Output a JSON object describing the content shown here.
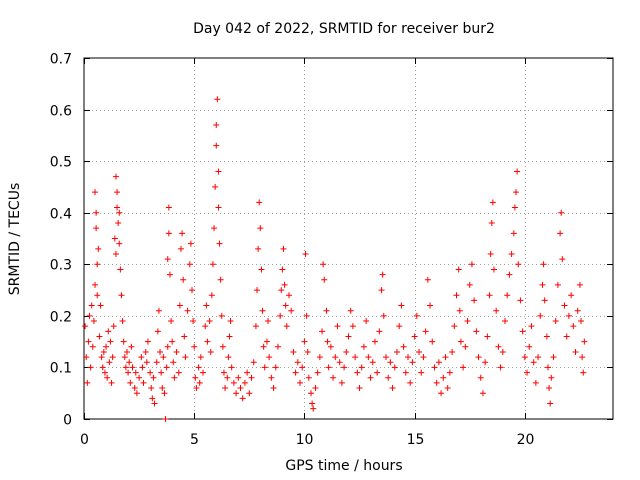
{
  "chart_data": {
    "type": "scatter",
    "title": "Day 042 of 2022, SRMTID for receiver bur2",
    "xlabel": "GPS time / hours",
    "ylabel": "SRMTID / TECUs",
    "xlim": [
      0,
      24
    ],
    "ylim": [
      0,
      0.7
    ],
    "x_ticks": [
      0,
      5,
      10,
      15,
      20
    ],
    "y_ticks": [
      0,
      0.1,
      0.2,
      0.3,
      0.4,
      0.5,
      0.6,
      0.7
    ],
    "x_tick_labels": [
      "0",
      "5",
      "10",
      "15",
      "20"
    ],
    "y_tick_labels": [
      "0",
      "0.1",
      "0.2",
      "0.3",
      "0.4",
      "0.5",
      "0.6",
      "0.7"
    ],
    "grid": true,
    "marker": "+",
    "series": [
      {
        "name": "bur2",
        "color": "#ff0000",
        "points": [
          [
            0.05,
            0.18
          ],
          [
            0.1,
            0.12
          ],
          [
            0.15,
            0.07
          ],
          [
            0.2,
            0.15
          ],
          [
            0.25,
            0.2
          ],
          [
            0.3,
            0.1
          ],
          [
            0.35,
            0.22
          ],
          [
            0.4,
            0.14
          ],
          [
            0.45,
            0.19
          ],
          [
            0.5,
            0.26
          ],
          [
            0.5,
            0.44
          ],
          [
            0.55,
            0.4
          ],
          [
            0.55,
            0.37
          ],
          [
            0.6,
            0.3
          ],
          [
            0.6,
            0.24
          ],
          [
            0.65,
            0.33
          ],
          [
            0.7,
            0.16
          ],
          [
            0.75,
            0.22
          ],
          [
            0.8,
            0.12
          ],
          [
            0.85,
            0.1
          ],
          [
            0.9,
            0.13
          ],
          [
            0.95,
            0.09
          ],
          [
            1.0,
            0.14
          ],
          [
            1.05,
            0.08
          ],
          [
            1.1,
            0.17
          ],
          [
            1.15,
            0.11
          ],
          [
            1.2,
            0.15
          ],
          [
            1.25,
            0.07
          ],
          [
            1.3,
            0.12
          ],
          [
            1.35,
            0.18
          ],
          [
            1.4,
            0.35
          ],
          [
            1.45,
            0.32
          ],
          [
            1.45,
            0.47
          ],
          [
            1.5,
            0.44
          ],
          [
            1.5,
            0.41
          ],
          [
            1.55,
            0.38
          ],
          [
            1.6,
            0.34
          ],
          [
            1.6,
            0.4
          ],
          [
            1.65,
            0.29
          ],
          [
            1.7,
            0.24
          ],
          [
            1.75,
            0.19
          ],
          [
            1.8,
            0.15
          ],
          [
            1.85,
            0.12
          ],
          [
            1.9,
            0.1
          ],
          [
            1.95,
            0.13
          ],
          [
            2.0,
            0.09
          ],
          [
            2.05,
            0.11
          ],
          [
            2.1,
            0.07
          ],
          [
            2.15,
            0.14
          ],
          [
            2.2,
            0.1
          ],
          [
            2.3,
            0.06
          ],
          [
            2.35,
            0.09
          ],
          [
            2.4,
            0.05
          ],
          [
            2.5,
            0.08
          ],
          [
            2.6,
            0.12
          ],
          [
            2.65,
            0.1
          ],
          [
            2.7,
            0.07
          ],
          [
            2.8,
            0.13
          ],
          [
            2.85,
            0.11
          ],
          [
            2.9,
            0.15
          ],
          [
            3.0,
            0.09
          ],
          [
            3.05,
            0.06
          ],
          [
            3.1,
            0.04
          ],
          [
            3.15,
            0.08
          ],
          [
            3.2,
            0.03
          ],
          [
            3.3,
            0.11
          ],
          [
            3.35,
            0.17
          ],
          [
            3.4,
            0.21
          ],
          [
            3.45,
            0.13
          ],
          [
            3.5,
            0.09
          ],
          [
            3.55,
            0.06
          ],
          [
            3.6,
            0.12
          ],
          [
            3.65,
            0.05
          ],
          [
            3.7,
            0.0
          ],
          [
            3.75,
            0.1
          ],
          [
            3.8,
            0.14
          ],
          [
            3.8,
            0.31
          ],
          [
            3.85,
            0.36
          ],
          [
            3.85,
            0.41
          ],
          [
            3.9,
            0.28
          ],
          [
            3.95,
            0.19
          ],
          [
            4.0,
            0.15
          ],
          [
            4.05,
            0.11
          ],
          [
            4.1,
            0.08
          ],
          [
            4.2,
            0.13
          ],
          [
            4.3,
            0.09
          ],
          [
            4.35,
            0.22
          ],
          [
            4.4,
            0.33
          ],
          [
            4.45,
            0.36
          ],
          [
            4.5,
            0.27
          ],
          [
            4.55,
            0.16
          ],
          [
            4.6,
            0.12
          ],
          [
            4.7,
            0.21
          ],
          [
            4.8,
            0.3
          ],
          [
            4.85,
            0.34
          ],
          [
            4.9,
            0.25
          ],
          [
            4.95,
            0.19
          ],
          [
            5.0,
            0.14
          ],
          [
            5.05,
            0.08
          ],
          [
            5.1,
            0.06
          ],
          [
            5.2,
            0.1
          ],
          [
            5.25,
            0.07
          ],
          [
            5.3,
            0.12
          ],
          [
            5.4,
            0.09
          ],
          [
            5.5,
            0.18
          ],
          [
            5.55,
            0.22
          ],
          [
            5.6,
            0.15
          ],
          [
            5.7,
            0.19
          ],
          [
            5.75,
            0.13
          ],
          [
            5.8,
            0.24
          ],
          [
            5.85,
            0.3
          ],
          [
            5.9,
            0.37
          ],
          [
            5.95,
            0.45
          ],
          [
            6.0,
            0.53
          ],
          [
            6.0,
            0.57
          ],
          [
            6.05,
            0.62
          ],
          [
            6.1,
            0.48
          ],
          [
            6.1,
            0.41
          ],
          [
            6.15,
            0.34
          ],
          [
            6.2,
            0.27
          ],
          [
            6.25,
            0.2
          ],
          [
            6.3,
            0.14
          ],
          [
            6.35,
            0.09
          ],
          [
            6.4,
            0.06
          ],
          [
            6.5,
            0.08
          ],
          [
            6.55,
            0.12
          ],
          [
            6.6,
            0.16
          ],
          [
            6.65,
            0.19
          ],
          [
            6.7,
            0.1
          ],
          [
            6.8,
            0.07
          ],
          [
            6.9,
            0.05
          ],
          [
            7.0,
            0.08
          ],
          [
            7.1,
            0.06
          ],
          [
            7.2,
            0.04
          ],
          [
            7.3,
            0.07
          ],
          [
            7.4,
            0.09
          ],
          [
            7.5,
            0.05
          ],
          [
            7.6,
            0.08
          ],
          [
            7.7,
            0.11
          ],
          [
            7.8,
            0.18
          ],
          [
            7.85,
            0.25
          ],
          [
            7.9,
            0.33
          ],
          [
            7.95,
            0.42
          ],
          [
            8.0,
            0.37
          ],
          [
            8.05,
            0.29
          ],
          [
            8.1,
            0.21
          ],
          [
            8.15,
            0.14
          ],
          [
            8.2,
            0.1
          ],
          [
            8.3,
            0.15
          ],
          [
            8.35,
            0.19
          ],
          [
            8.4,
            0.12
          ],
          [
            8.5,
            0.08
          ],
          [
            8.6,
            0.06
          ],
          [
            8.7,
            0.1
          ],
          [
            8.8,
            0.14
          ],
          [
            8.9,
            0.2
          ],
          [
            8.95,
            0.25
          ],
          [
            9.0,
            0.29
          ],
          [
            9.05,
            0.33
          ],
          [
            9.1,
            0.26
          ],
          [
            9.15,
            0.22
          ],
          [
            9.2,
            0.18
          ],
          [
            9.3,
            0.24
          ],
          [
            9.4,
            0.21
          ],
          [
            9.5,
            0.13
          ],
          [
            9.6,
            0.09
          ],
          [
            9.7,
            0.11
          ],
          [
            9.8,
            0.07
          ],
          [
            9.9,
            0.1
          ],
          [
            10.0,
            0.15
          ],
          [
            10.05,
            0.32
          ],
          [
            10.1,
            0.2
          ],
          [
            10.15,
            0.13
          ],
          [
            10.2,
            0.08
          ],
          [
            10.3,
            0.05
          ],
          [
            10.35,
            0.03
          ],
          [
            10.4,
            0.02
          ],
          [
            10.5,
            0.06
          ],
          [
            10.6,
            0.09
          ],
          [
            10.7,
            0.12
          ],
          [
            10.8,
            0.17
          ],
          [
            10.85,
            0.3
          ],
          [
            10.9,
            0.27
          ],
          [
            11.0,
            0.21
          ],
          [
            11.05,
            0.15
          ],
          [
            11.1,
            0.1
          ],
          [
            11.2,
            0.14
          ],
          [
            11.3,
            0.08
          ],
          [
            11.4,
            0.12
          ],
          [
            11.5,
            0.18
          ],
          [
            11.6,
            0.11
          ],
          [
            11.7,
            0.07
          ],
          [
            11.8,
            0.1
          ],
          [
            11.9,
            0.13
          ],
          [
            12.0,
            0.16
          ],
          [
            12.1,
            0.21
          ],
          [
            12.2,
            0.18
          ],
          [
            12.3,
            0.12
          ],
          [
            12.4,
            0.09
          ],
          [
            12.5,
            0.06
          ],
          [
            12.6,
            0.1
          ],
          [
            12.7,
            0.14
          ],
          [
            12.8,
            0.19
          ],
          [
            12.9,
            0.12
          ],
          [
            13.0,
            0.08
          ],
          [
            13.1,
            0.11
          ],
          [
            13.2,
            0.15
          ],
          [
            13.3,
            0.09
          ],
          [
            13.4,
            0.17
          ],
          [
            13.5,
            0.25
          ],
          [
            13.55,
            0.28
          ],
          [
            13.6,
            0.2
          ],
          [
            13.7,
            0.12
          ],
          [
            13.8,
            0.08
          ],
          [
            13.9,
            0.11
          ],
          [
            14.0,
            0.06
          ],
          [
            14.1,
            0.1
          ],
          [
            14.2,
            0.13
          ],
          [
            14.3,
            0.18
          ],
          [
            14.4,
            0.22
          ],
          [
            14.5,
            0.14
          ],
          [
            14.6,
            0.09
          ],
          [
            14.7,
            0.12
          ],
          [
            14.8,
            0.07
          ],
          [
            14.9,
            0.11
          ],
          [
            15.0,
            0.16
          ],
          [
            15.1,
            0.2
          ],
          [
            15.2,
            0.13
          ],
          [
            15.3,
            0.09
          ],
          [
            15.4,
            0.12
          ],
          [
            15.5,
            0.17
          ],
          [
            15.6,
            0.27
          ],
          [
            15.7,
            0.22
          ],
          [
            15.8,
            0.15
          ],
          [
            15.9,
            0.1
          ],
          [
            16.0,
            0.07
          ],
          [
            16.1,
            0.11
          ],
          [
            16.2,
            0.05
          ],
          [
            16.3,
            0.08
          ],
          [
            16.4,
            0.12
          ],
          [
            16.5,
            0.06
          ],
          [
            16.6,
            0.09
          ],
          [
            16.7,
            0.13
          ],
          [
            16.8,
            0.18
          ],
          [
            16.9,
            0.24
          ],
          [
            17.0,
            0.29
          ],
          [
            17.05,
            0.21
          ],
          [
            17.1,
            0.15
          ],
          [
            17.2,
            0.1
          ],
          [
            17.3,
            0.14
          ],
          [
            17.4,
            0.19
          ],
          [
            17.5,
            0.26
          ],
          [
            17.6,
            0.3
          ],
          [
            17.7,
            0.23
          ],
          [
            17.8,
            0.17
          ],
          [
            17.9,
            0.12
          ],
          [
            18.0,
            0.08
          ],
          [
            18.1,
            0.05
          ],
          [
            18.2,
            0.11
          ],
          [
            18.3,
            0.16
          ],
          [
            18.4,
            0.24
          ],
          [
            18.45,
            0.32
          ],
          [
            18.5,
            0.38
          ],
          [
            18.55,
            0.42
          ],
          [
            18.6,
            0.29
          ],
          [
            18.7,
            0.21
          ],
          [
            18.8,
            0.14
          ],
          [
            18.9,
            0.1
          ],
          [
            19.0,
            0.13
          ],
          [
            19.1,
            0.19
          ],
          [
            19.2,
            0.24
          ],
          [
            19.3,
            0.28
          ],
          [
            19.4,
            0.32
          ],
          [
            19.5,
            0.36
          ],
          [
            19.55,
            0.41
          ],
          [
            19.6,
            0.44
          ],
          [
            19.65,
            0.48
          ],
          [
            19.7,
            0.3
          ],
          [
            19.8,
            0.23
          ],
          [
            19.9,
            0.17
          ],
          [
            20.0,
            0.12
          ],
          [
            20.1,
            0.09
          ],
          [
            20.2,
            0.14
          ],
          [
            20.3,
            0.18
          ],
          [
            20.4,
            0.11
          ],
          [
            20.5,
            0.07
          ],
          [
            20.6,
            0.12
          ],
          [
            20.7,
            0.2
          ],
          [
            20.8,
            0.26
          ],
          [
            20.85,
            0.3
          ],
          [
            20.9,
            0.23
          ],
          [
            21.0,
            0.16
          ],
          [
            21.05,
            0.1
          ],
          [
            21.1,
            0.06
          ],
          [
            21.15,
            0.03
          ],
          [
            21.2,
            0.08
          ],
          [
            21.3,
            0.12
          ],
          [
            21.4,
            0.19
          ],
          [
            21.5,
            0.26
          ],
          [
            21.6,
            0.36
          ],
          [
            21.65,
            0.4
          ],
          [
            21.7,
            0.31
          ],
          [
            21.8,
            0.22
          ],
          [
            21.9,
            0.16
          ],
          [
            22.0,
            0.2
          ],
          [
            22.1,
            0.24
          ],
          [
            22.2,
            0.18
          ],
          [
            22.3,
            0.13
          ],
          [
            22.4,
            0.21
          ],
          [
            22.5,
            0.26
          ],
          [
            22.55,
            0.19
          ],
          [
            22.6,
            0.12
          ],
          [
            22.65,
            0.09
          ],
          [
            22.7,
            0.15
          ]
        ]
      }
    ]
  }
}
